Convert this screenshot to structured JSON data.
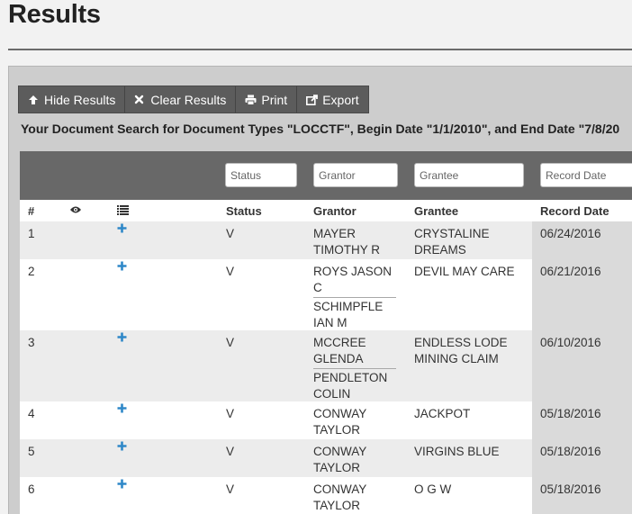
{
  "page": {
    "title": "Results"
  },
  "toolbar": {
    "hide_results": "Hide Results",
    "clear_results": "Clear Results",
    "print": "Print",
    "export": "Export"
  },
  "search_summary": "Your Document Search for Document Types \"LOCCTF\", Begin Date \"1/1/2010\", and End Date \"7/8/20",
  "filters": {
    "status": "Status",
    "grantor": "Grantor",
    "grantee": "Grantee",
    "record_date": "Record Date"
  },
  "columns": {
    "number": "#",
    "view_icon": "eye-icon",
    "details_icon": "list-icon",
    "status": "Status",
    "grantor": "Grantor",
    "grantee": "Grantee",
    "record_date": "Record Date"
  },
  "rows": [
    {
      "num": "1",
      "status": "V",
      "grantors": [
        [
          "MAYER",
          "TIMOTHY R"
        ]
      ],
      "grantee": [
        "CRYSTALINE",
        "DREAMS"
      ],
      "record_date": "06/24/2016"
    },
    {
      "num": "2",
      "status": "V",
      "grantors": [
        [
          "ROYS JASON",
          "C"
        ],
        [
          "SCHIMPFLE",
          "IAN M"
        ]
      ],
      "grantee": [
        "DEVIL MAY CARE"
      ],
      "record_date": "06/21/2016"
    },
    {
      "num": "3",
      "status": "V",
      "grantors": [
        [
          "MCCREE",
          "GLENDA"
        ],
        [
          "PENDLETON",
          "COLIN"
        ]
      ],
      "grantee": [
        "ENDLESS LODE",
        "MINING CLAIM"
      ],
      "record_date": "06/10/2016"
    },
    {
      "num": "4",
      "status": "V",
      "grantors": [
        [
          "CONWAY",
          "TAYLOR"
        ]
      ],
      "grantee": [
        "JACKPOT"
      ],
      "record_date": "05/18/2016"
    },
    {
      "num": "5",
      "status": "V",
      "grantors": [
        [
          "CONWAY",
          "TAYLOR"
        ]
      ],
      "grantee": [
        "VIRGINS BLUE"
      ],
      "record_date": "05/18/2016"
    },
    {
      "num": "6",
      "status": "V",
      "grantors": [
        [
          "CONWAY",
          "TAYLOR"
        ]
      ],
      "grantee": [
        "O G W"
      ],
      "record_date": "05/18/2016"
    }
  ],
  "expand_icon": "plus-icon",
  "colors": {
    "expand_icon": "#2f88c8",
    "filter_bar": "#686868",
    "toolbar": "#5a5a5a"
  }
}
